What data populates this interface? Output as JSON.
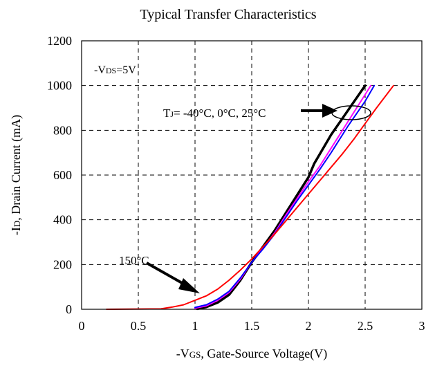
{
  "chart_data": {
    "type": "line",
    "title": "Typical Transfer Characteristics",
    "xlabel": {
      "prefix": "-V",
      "sub": "GS",
      "rest": ", Gate-Source Voltage(V)"
    },
    "ylabel": {
      "prefix": "-I",
      "sub": "D",
      "rest": ", Drain Current (mA)"
    },
    "xlim": [
      0,
      3
    ],
    "ylim": [
      0,
      1200
    ],
    "xticks": [
      "0",
      "0.5",
      "1",
      "1.5",
      "2",
      "2.5",
      "3"
    ],
    "yticks": [
      "0",
      "200",
      "400",
      "600",
      "800",
      "1000",
      "1200"
    ],
    "grid": true,
    "condition": {
      "prefix": "-V",
      "sub": "DS",
      "rest": "=5V"
    },
    "annotations": {
      "tj": {
        "prefix": "T",
        "sub": "J",
        "rest": "= -40°C, 0°C, 25°C"
      },
      "hot": "150°C"
    },
    "series": [
      {
        "color": "#000000",
        "points": [
          [
            1.02,
            2
          ],
          [
            1.1,
            10
          ],
          [
            1.2,
            30
          ],
          [
            1.3,
            65
          ],
          [
            1.4,
            130
          ],
          [
            1.5,
            210
          ],
          [
            1.6,
            280
          ],
          [
            1.7,
            350
          ],
          [
            1.8,
            430
          ],
          [
            1.9,
            510
          ],
          [
            2.0,
            590
          ],
          [
            2.05,
            650
          ],
          [
            2.2,
            780
          ],
          [
            2.35,
            890
          ],
          [
            2.5,
            1000
          ]
        ]
      },
      {
        "color": "#ff00ff",
        "points": [
          [
            1.0,
            5
          ],
          [
            1.1,
            15
          ],
          [
            1.2,
            40
          ],
          [
            1.3,
            75
          ],
          [
            1.4,
            135
          ],
          [
            1.5,
            210
          ],
          [
            1.6,
            275
          ],
          [
            1.7,
            340
          ],
          [
            1.8,
            420
          ],
          [
            1.9,
            495
          ],
          [
            2.0,
            570
          ],
          [
            2.1,
            640
          ],
          [
            2.2,
            720
          ],
          [
            2.35,
            840
          ],
          [
            2.5,
            960
          ],
          [
            2.55,
            1000
          ]
        ]
      },
      {
        "color": "#0000ff",
        "points": [
          [
            1.0,
            8
          ],
          [
            1.1,
            20
          ],
          [
            1.2,
            45
          ],
          [
            1.3,
            80
          ],
          [
            1.4,
            140
          ],
          [
            1.5,
            210
          ],
          [
            1.6,
            270
          ],
          [
            1.7,
            335
          ],
          [
            1.8,
            410
          ],
          [
            1.9,
            485
          ],
          [
            2.0,
            555
          ],
          [
            2.1,
            625
          ],
          [
            2.2,
            700
          ],
          [
            2.35,
            820
          ],
          [
            2.5,
            930
          ],
          [
            2.58,
            1000
          ]
        ]
      },
      {
        "color": "#ff0000",
        "points": [
          [
            0.22,
            0
          ],
          [
            0.7,
            2
          ],
          [
            0.8,
            10
          ],
          [
            0.9,
            20
          ],
          [
            1.0,
            40
          ],
          [
            1.1,
            60
          ],
          [
            1.2,
            90
          ],
          [
            1.3,
            130
          ],
          [
            1.4,
            175
          ],
          [
            1.5,
            225
          ],
          [
            1.6,
            280
          ],
          [
            1.7,
            335
          ],
          [
            1.8,
            395
          ],
          [
            1.9,
            455
          ],
          [
            2.0,
            515
          ],
          [
            2.1,
            575
          ],
          [
            2.2,
            635
          ],
          [
            2.3,
            695
          ],
          [
            2.4,
            760
          ],
          [
            2.5,
            830
          ],
          [
            2.6,
            900
          ],
          [
            2.75,
            1000
          ]
        ]
      }
    ]
  }
}
